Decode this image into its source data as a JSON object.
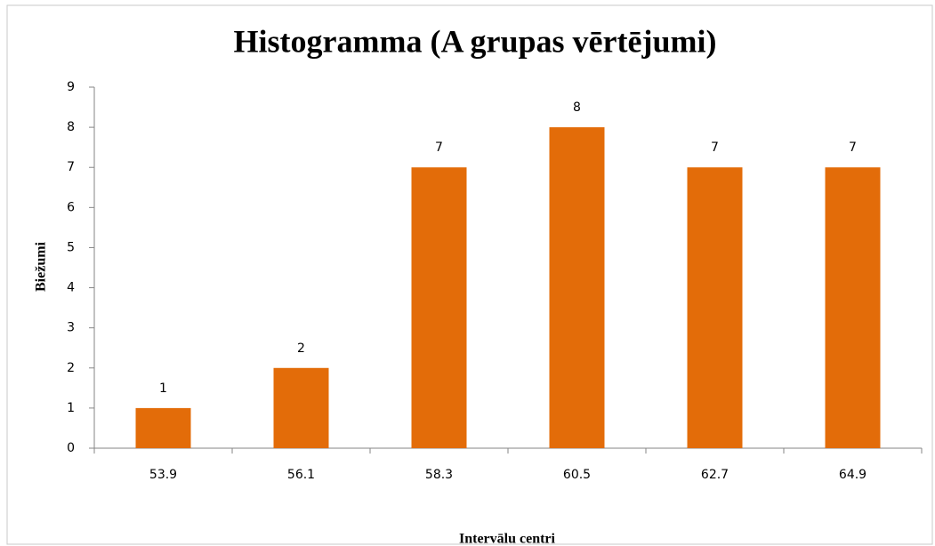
{
  "chart_data": {
    "type": "bar",
    "title": "Histogramma (A grupas vērtējumi)",
    "x_label": "Intervālu centri",
    "y_label": "Biežumi",
    "categories": [
      53.9,
      56.1,
      58.3,
      60.5,
      62.7,
      64.9
    ],
    "values": [
      1,
      2,
      7,
      8,
      7,
      7
    ],
    "color": "#e36c09",
    "ylim": [
      0,
      9
    ],
    "yticks": [
      0,
      1,
      2,
      3,
      4,
      5,
      6,
      7,
      8,
      9
    ],
    "grid": false
  }
}
